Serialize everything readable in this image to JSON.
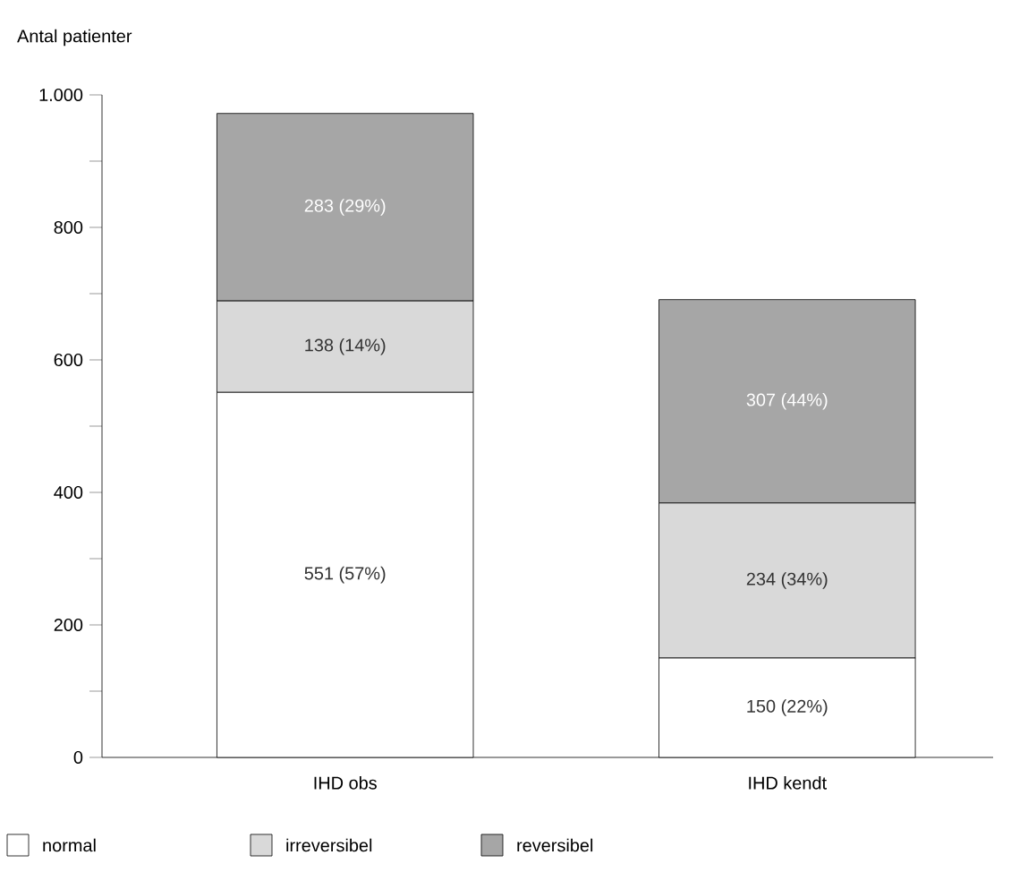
{
  "chart_data": {
    "type": "bar",
    "stacked": true,
    "ylabel": "Antal patienter",
    "categories": [
      "IHD obs",
      "IHD kendt"
    ],
    "series": [
      {
        "name": "normal",
        "color": "#ffffff",
        "values": [
          551,
          150
        ],
        "value_labels": [
          "551 (57%)",
          "150 (22%)"
        ]
      },
      {
        "name": "irreversibel",
        "color": "#d9d9d9",
        "values": [
          138,
          234
        ],
        "value_labels": [
          "138 (14%)",
          "234 (34%)"
        ]
      },
      {
        "name": "reversibel",
        "color": "#a6a6a6",
        "values": [
          283,
          307
        ],
        "value_labels": [
          "283 (29%)",
          "307 (44%)"
        ]
      }
    ],
    "ylim": [
      0,
      1000
    ],
    "yticks": [
      0,
      {
        "value": 100,
        "label": null
      },
      200,
      {
        "value": 300,
        "label": null
      },
      400,
      {
        "value": 500,
        "label": null
      },
      600,
      {
        "value": 700,
        "label": null
      },
      800,
      {
        "value": 900,
        "label": null
      },
      {
        "value": 1000,
        "label": "1.000"
      }
    ],
    "legend": "bottom left",
    "grid": false
  }
}
